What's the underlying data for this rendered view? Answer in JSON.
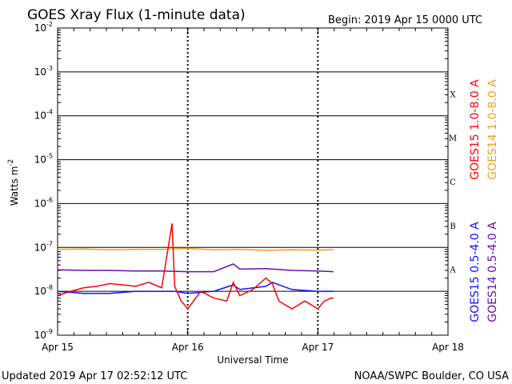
{
  "chart_data": {
    "type": "line",
    "title": "GOES Xray Flux (1-minute data)",
    "begin_label": "Begin:  2019 Apr 15 0000 UTC",
    "ylabel": "Watts m",
    "ylabel_exp": "-2",
    "xlabel": "Universal Time",
    "y_scale": "log",
    "ylim": [
      1e-09,
      0.01
    ],
    "y_ticks": [
      {
        "base": "10",
        "exp": "-2"
      },
      {
        "base": "10",
        "exp": "-3"
      },
      {
        "base": "10",
        "exp": "-4"
      },
      {
        "base": "10",
        "exp": "-5"
      },
      {
        "base": "10",
        "exp": "-6"
      },
      {
        "base": "10",
        "exp": "-7"
      },
      {
        "base": "10",
        "exp": "-8"
      },
      {
        "base": "10",
        "exp": "-9"
      }
    ],
    "x_ticks": [
      "Apr 15",
      "Apr 16",
      "Apr 17",
      "Apr 18"
    ],
    "xlim_days": [
      0,
      3
    ],
    "flare_classes": [
      "X",
      "M",
      "C",
      "B",
      "A"
    ],
    "grid": true,
    "footer_left": "Updated 2019 Apr 17 02:52:12 UTC",
    "footer_right": "NOAA/SWPC Boulder, CO USA",
    "series": [
      {
        "name": "GOES15 1.0-8.0 A",
        "color": "#ff0000",
        "x": [
          0.0,
          0.1,
          0.2,
          0.3,
          0.4,
          0.5,
          0.6,
          0.7,
          0.8,
          0.88,
          0.9,
          0.95,
          1.0,
          1.1,
          1.2,
          1.3,
          1.35,
          1.4,
          1.5,
          1.6,
          1.65,
          1.7,
          1.8,
          1.9,
          2.0,
          2.05,
          2.1,
          2.12
        ],
        "y": [
          8e-09,
          1e-08,
          1.2e-08,
          1.3e-08,
          1.5e-08,
          1.4e-08,
          1.3e-08,
          1.6e-08,
          1.2e-08,
          3.5e-07,
          1.3e-08,
          6e-09,
          4e-09,
          1e-08,
          7e-09,
          6e-09,
          1.6e-08,
          8e-09,
          1.1e-08,
          2e-08,
          1.5e-08,
          6e-09,
          4e-09,
          6e-09,
          4e-09,
          6e-09,
          7e-09,
          7e-09
        ]
      },
      {
        "name": "GOES14 1.0-8.0 A",
        "color": "#f0a020",
        "x": [
          0.0,
          0.2,
          0.4,
          0.6,
          0.8,
          1.0,
          1.2,
          1.4,
          1.6,
          1.8,
          2.0,
          2.12
        ],
        "y": [
          9e-08,
          9.2e-08,
          8.8e-08,
          9e-08,
          9e-08,
          9.5e-08,
          8.8e-08,
          9e-08,
          8.6e-08,
          8.8e-08,
          8.7e-08,
          8.9e-08
        ]
      },
      {
        "name": "GOES15 0.5-4.0 A",
        "color": "#1010ff",
        "x": [
          0.0,
          0.2,
          0.4,
          0.6,
          0.8,
          0.9,
          1.0,
          1.2,
          1.35,
          1.4,
          1.6,
          1.65,
          1.8,
          2.0,
          2.12
        ],
        "y": [
          1e-08,
          9e-09,
          9e-09,
          1e-08,
          1e-08,
          1e-08,
          9e-09,
          1e-08,
          1.4e-08,
          1.1e-08,
          1.3e-08,
          1.6e-08,
          1.1e-08,
          1e-08,
          1e-08
        ]
      },
      {
        "name": "GOES14 0.5-4.0 A",
        "color": "#6a0dad",
        "x": [
          0.0,
          0.2,
          0.4,
          0.6,
          0.8,
          1.0,
          1.2,
          1.35,
          1.4,
          1.6,
          1.8,
          2.0,
          2.12
        ],
        "y": [
          3.1e-08,
          3e-08,
          3e-08,
          2.9e-08,
          2.9e-08,
          2.8e-08,
          2.8e-08,
          4.2e-08,
          3.2e-08,
          3.3e-08,
          3e-08,
          2.9e-08,
          2.8e-08
        ]
      }
    ]
  }
}
